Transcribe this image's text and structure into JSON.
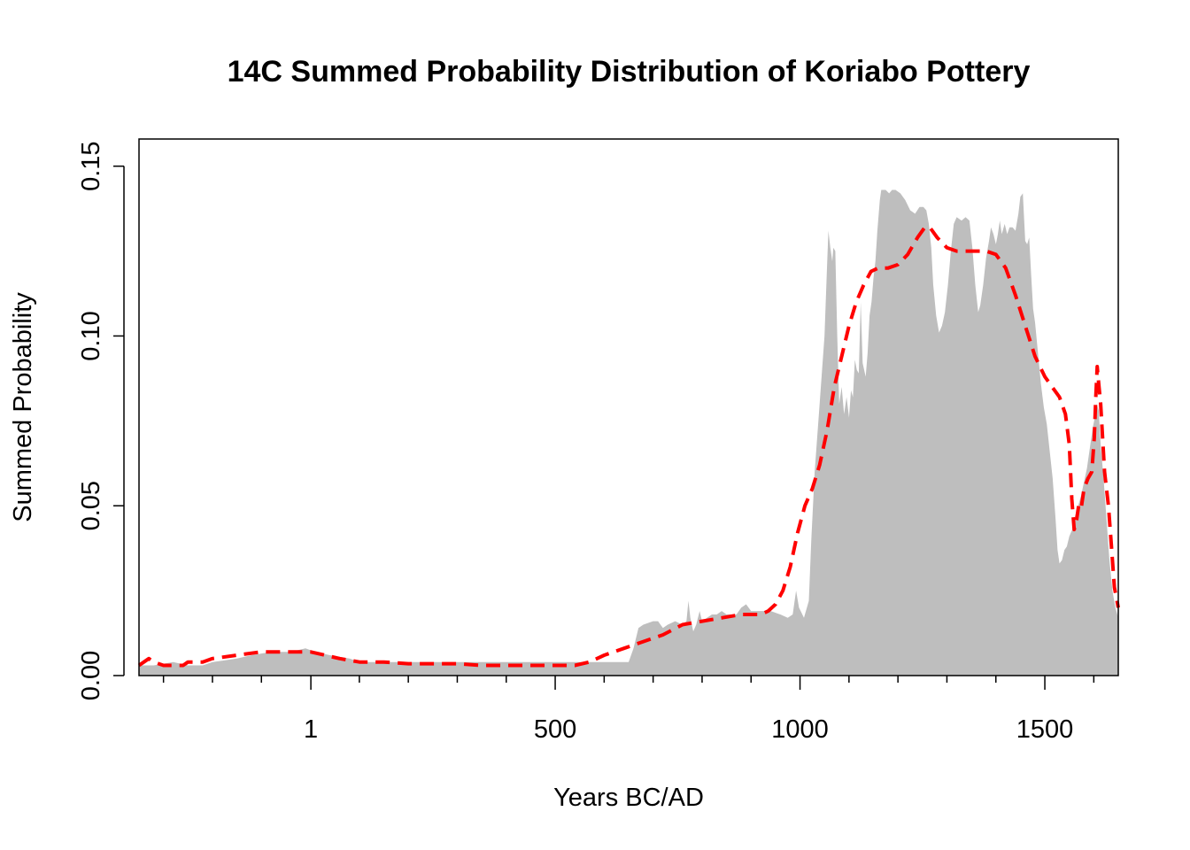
{
  "chart_data": {
    "type": "area",
    "title": "14C Summed Probability Distribution of Koriabo Pottery",
    "xlabel": "Years BC/AD",
    "ylabel": "Summed Probability",
    "xlim": [
      -350,
      1650
    ],
    "ylim": [
      0,
      0.158
    ],
    "x_major_ticks": [
      1,
      500,
      1000,
      1500
    ],
    "x_major_tick_labels": [
      "1",
      "500",
      "1000",
      "1500"
    ],
    "x_minor_ticks": [
      -300,
      -200,
      -100,
      100,
      200,
      300,
      400,
      600,
      700,
      800,
      900,
      1100,
      1200,
      1300,
      1400,
      1600
    ],
    "y_ticks": [
      0,
      0.05,
      0.1,
      0.15
    ],
    "y_tick_labels": [
      "0.00",
      "0.05",
      "0.10",
      "0.15"
    ],
    "grid": false,
    "colors": {
      "spd_fill": "#bebebe",
      "model_line": "#ff0000"
    },
    "series": [
      {
        "kind": "spd-area",
        "points": [
          [
            -350,
            0.003
          ],
          [
            -320,
            0.003
          ],
          [
            -280,
            0.004
          ],
          [
            -250,
            0.003
          ],
          [
            -220,
            0.003
          ],
          [
            -200,
            0.004
          ],
          [
            -150,
            0.005
          ],
          [
            -120,
            0.006
          ],
          [
            -80,
            0.007
          ],
          [
            -40,
            0.007
          ],
          [
            -10,
            0.008
          ],
          [
            10,
            0.007
          ],
          [
            40,
            0.006
          ],
          [
            80,
            0.005
          ],
          [
            100,
            0.004
          ],
          [
            150,
            0.004
          ],
          [
            200,
            0.004
          ],
          [
            300,
            0.004
          ],
          [
            400,
            0.004
          ],
          [
            500,
            0.004
          ],
          [
            550,
            0.004
          ],
          [
            600,
            0.004
          ],
          [
            640,
            0.004
          ],
          [
            650,
            0.004
          ],
          [
            660,
            0.008
          ],
          [
            670,
            0.014
          ],
          [
            680,
            0.015
          ],
          [
            700,
            0.016
          ],
          [
            710,
            0.016
          ],
          [
            720,
            0.014
          ],
          [
            730,
            0.015
          ],
          [
            745,
            0.016
          ],
          [
            760,
            0.015
          ],
          [
            768,
            0.016
          ],
          [
            772,
            0.022
          ],
          [
            776,
            0.017
          ],
          [
            782,
            0.013
          ],
          [
            788,
            0.015
          ],
          [
            795,
            0.019
          ],
          [
            800,
            0.016
          ],
          [
            810,
            0.017
          ],
          [
            820,
            0.018
          ],
          [
            830,
            0.018
          ],
          [
            840,
            0.019
          ],
          [
            850,
            0.018
          ],
          [
            870,
            0.018
          ],
          [
            880,
            0.02
          ],
          [
            890,
            0.021
          ],
          [
            900,
            0.019
          ],
          [
            920,
            0.019
          ],
          [
            940,
            0.019
          ],
          [
            960,
            0.018
          ],
          [
            975,
            0.017
          ],
          [
            985,
            0.018
          ],
          [
            992,
            0.025
          ],
          [
            998,
            0.02
          ],
          [
            1008,
            0.017
          ],
          [
            1018,
            0.022
          ],
          [
            1023,
            0.04
          ],
          [
            1030,
            0.06
          ],
          [
            1040,
            0.08
          ],
          [
            1050,
            0.1
          ],
          [
            1055,
            0.12
          ],
          [
            1058,
            0.131
          ],
          [
            1062,
            0.126
          ],
          [
            1066,
            0.122
          ],
          [
            1068,
            0.126
          ],
          [
            1072,
            0.125
          ],
          [
            1076,
            0.1
          ],
          [
            1080,
            0.08
          ],
          [
            1085,
            0.085
          ],
          [
            1090,
            0.077
          ],
          [
            1095,
            0.082
          ],
          [
            1100,
            0.076
          ],
          [
            1104,
            0.084
          ],
          [
            1108,
            0.082
          ],
          [
            1112,
            0.093
          ],
          [
            1116,
            0.09
          ],
          [
            1120,
            0.089
          ],
          [
            1124,
            0.11
          ],
          [
            1128,
            0.092
          ],
          [
            1134,
            0.088
          ],
          [
            1138,
            0.095
          ],
          [
            1142,
            0.106
          ],
          [
            1146,
            0.11
          ],
          [
            1150,
            0.117
          ],
          [
            1154,
            0.122
          ],
          [
            1158,
            0.131
          ],
          [
            1163,
            0.14
          ],
          [
            1166,
            0.143
          ],
          [
            1175,
            0.143
          ],
          [
            1182,
            0.142
          ],
          [
            1188,
            0.143
          ],
          [
            1195,
            0.143
          ],
          [
            1205,
            0.142
          ],
          [
            1215,
            0.14
          ],
          [
            1225,
            0.137
          ],
          [
            1235,
            0.136
          ],
          [
            1244,
            0.138
          ],
          [
            1252,
            0.138
          ],
          [
            1258,
            0.137
          ],
          [
            1263,
            0.133
          ],
          [
            1268,
            0.126
          ],
          [
            1272,
            0.115
          ],
          [
            1278,
            0.106
          ],
          [
            1284,
            0.101
          ],
          [
            1290,
            0.103
          ],
          [
            1296,
            0.107
          ],
          [
            1302,
            0.115
          ],
          [
            1308,
            0.125
          ],
          [
            1314,
            0.133
          ],
          [
            1320,
            0.135
          ],
          [
            1330,
            0.134
          ],
          [
            1338,
            0.135
          ],
          [
            1346,
            0.134
          ],
          [
            1352,
            0.126
          ],
          [
            1358,
            0.115
          ],
          [
            1364,
            0.107
          ],
          [
            1368,
            0.109
          ],
          [
            1374,
            0.115
          ],
          [
            1380,
            0.123
          ],
          [
            1386,
            0.128
          ],
          [
            1390,
            0.132
          ],
          [
            1395,
            0.13
          ],
          [
            1400,
            0.127
          ],
          [
            1404,
            0.13
          ],
          [
            1408,
            0.134
          ],
          [
            1412,
            0.13
          ],
          [
            1418,
            0.133
          ],
          [
            1423,
            0.13
          ],
          [
            1428,
            0.132
          ],
          [
            1434,
            0.132
          ],
          [
            1440,
            0.131
          ],
          [
            1446,
            0.136
          ],
          [
            1450,
            0.141
          ],
          [
            1455,
            0.142
          ],
          [
            1460,
            0.128
          ],
          [
            1464,
            0.127
          ],
          [
            1468,
            0.129
          ],
          [
            1472,
            0.118
          ],
          [
            1476,
            0.108
          ],
          [
            1480,
            0.104
          ],
          [
            1486,
            0.095
          ],
          [
            1492,
            0.086
          ],
          [
            1498,
            0.079
          ],
          [
            1504,
            0.074
          ],
          [
            1510,
            0.066
          ],
          [
            1516,
            0.058
          ],
          [
            1522,
            0.046
          ],
          [
            1526,
            0.037
          ],
          [
            1530,
            0.033
          ],
          [
            1535,
            0.034
          ],
          [
            1540,
            0.037
          ],
          [
            1545,
            0.038
          ],
          [
            1550,
            0.041
          ],
          [
            1556,
            0.043
          ],
          [
            1562,
            0.047
          ],
          [
            1568,
            0.05
          ],
          [
            1574,
            0.053
          ],
          [
            1580,
            0.057
          ],
          [
            1586,
            0.061
          ],
          [
            1592,
            0.067
          ],
          [
            1598,
            0.073
          ],
          [
            1602,
            0.076
          ],
          [
            1606,
            0.08
          ],
          [
            1610,
            0.078
          ],
          [
            1614,
            0.068
          ],
          [
            1620,
            0.058
          ],
          [
            1626,
            0.046
          ],
          [
            1632,
            0.034
          ],
          [
            1638,
            0.025
          ],
          [
            1644,
            0.02
          ],
          [
            1650,
            0.017
          ]
        ]
      },
      {
        "kind": "model-line",
        "points": [
          [
            -350,
            0.003
          ],
          [
            -340,
            0.004
          ],
          [
            -330,
            0.005
          ],
          [
            -320,
            0.004
          ],
          [
            -300,
            0.003
          ],
          [
            -280,
            0.003
          ],
          [
            -260,
            0.003
          ],
          [
            -250,
            0.004
          ],
          [
            -220,
            0.004
          ],
          [
            -200,
            0.005
          ],
          [
            -150,
            0.006
          ],
          [
            -100,
            0.007
          ],
          [
            -60,
            0.007
          ],
          [
            -30,
            0.007
          ],
          [
            0,
            0.007
          ],
          [
            30,
            0.006
          ],
          [
            60,
            0.005
          ],
          [
            100,
            0.004
          ],
          [
            150,
            0.004
          ],
          [
            200,
            0.0035
          ],
          [
            250,
            0.0035
          ],
          [
            300,
            0.0035
          ],
          [
            350,
            0.003
          ],
          [
            400,
            0.003
          ],
          [
            450,
            0.003
          ],
          [
            500,
            0.003
          ],
          [
            540,
            0.003
          ],
          [
            570,
            0.004
          ],
          [
            600,
            0.006
          ],
          [
            640,
            0.008
          ],
          [
            680,
            0.01
          ],
          [
            720,
            0.012
          ],
          [
            760,
            0.015
          ],
          [
            800,
            0.016
          ],
          [
            840,
            0.017
          ],
          [
            880,
            0.018
          ],
          [
            920,
            0.018
          ],
          [
            935,
            0.019
          ],
          [
            950,
            0.021
          ],
          [
            965,
            0.025
          ],
          [
            980,
            0.032
          ],
          [
            995,
            0.042
          ],
          [
            1010,
            0.05
          ],
          [
            1025,
            0.055
          ],
          [
            1040,
            0.062
          ],
          [
            1055,
            0.072
          ],
          [
            1070,
            0.085
          ],
          [
            1085,
            0.094
          ],
          [
            1100,
            0.103
          ],
          [
            1115,
            0.11
          ],
          [
            1130,
            0.115
          ],
          [
            1145,
            0.119
          ],
          [
            1160,
            0.12
          ],
          [
            1180,
            0.12
          ],
          [
            1200,
            0.121
          ],
          [
            1220,
            0.124
          ],
          [
            1240,
            0.129
          ],
          [
            1255,
            0.132
          ],
          [
            1265,
            0.132
          ],
          [
            1280,
            0.129
          ],
          [
            1300,
            0.126
          ],
          [
            1320,
            0.125
          ],
          [
            1340,
            0.125
          ],
          [
            1360,
            0.125
          ],
          [
            1380,
            0.125
          ],
          [
            1400,
            0.124
          ],
          [
            1420,
            0.12
          ],
          [
            1440,
            0.112
          ],
          [
            1460,
            0.103
          ],
          [
            1480,
            0.094
          ],
          [
            1500,
            0.088
          ],
          [
            1515,
            0.085
          ],
          [
            1530,
            0.082
          ],
          [
            1542,
            0.077
          ],
          [
            1550,
            0.068
          ],
          [
            1555,
            0.052
          ],
          [
            1560,
            0.043
          ],
          [
            1565,
            0.046
          ],
          [
            1570,
            0.051
          ],
          [
            1575,
            0.05
          ],
          [
            1580,
            0.055
          ],
          [
            1588,
            0.058
          ],
          [
            1596,
            0.06
          ],
          [
            1601,
            0.07
          ],
          [
            1604,
            0.082
          ],
          [
            1607,
            0.091
          ],
          [
            1610,
            0.086
          ],
          [
            1614,
            0.08
          ],
          [
            1618,
            0.07
          ],
          [
            1622,
            0.06
          ],
          [
            1626,
            0.055
          ],
          [
            1630,
            0.05
          ],
          [
            1636,
            0.038
          ],
          [
            1642,
            0.026
          ],
          [
            1650,
            0.02
          ]
        ]
      }
    ]
  }
}
